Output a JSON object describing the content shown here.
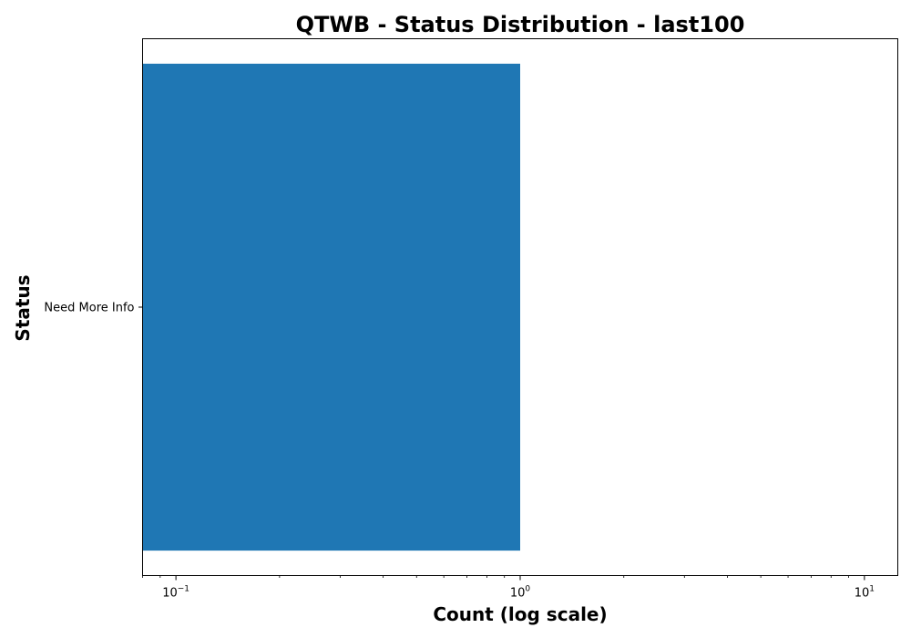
{
  "chart_data": {
    "type": "bar",
    "orientation": "horizontal",
    "title": "QTWB - Status Distribution - last100",
    "xlabel": "Count (log scale)",
    "ylabel": "Status",
    "xscale": "log",
    "xlim": [
      0.08,
      12.5
    ],
    "x_ticks": [
      {
        "base": "10",
        "exp": "−1",
        "value": 0.1
      },
      {
        "base": "10",
        "exp": "0",
        "value": 1
      },
      {
        "base": "10",
        "exp": "1",
        "value": 10
      }
    ],
    "categories": [
      "Need More Info"
    ],
    "values": [
      1
    ],
    "grid": false,
    "colors": {
      "bar": "#1f77b4",
      "axes": "#000000",
      "background": "#ffffff"
    }
  }
}
